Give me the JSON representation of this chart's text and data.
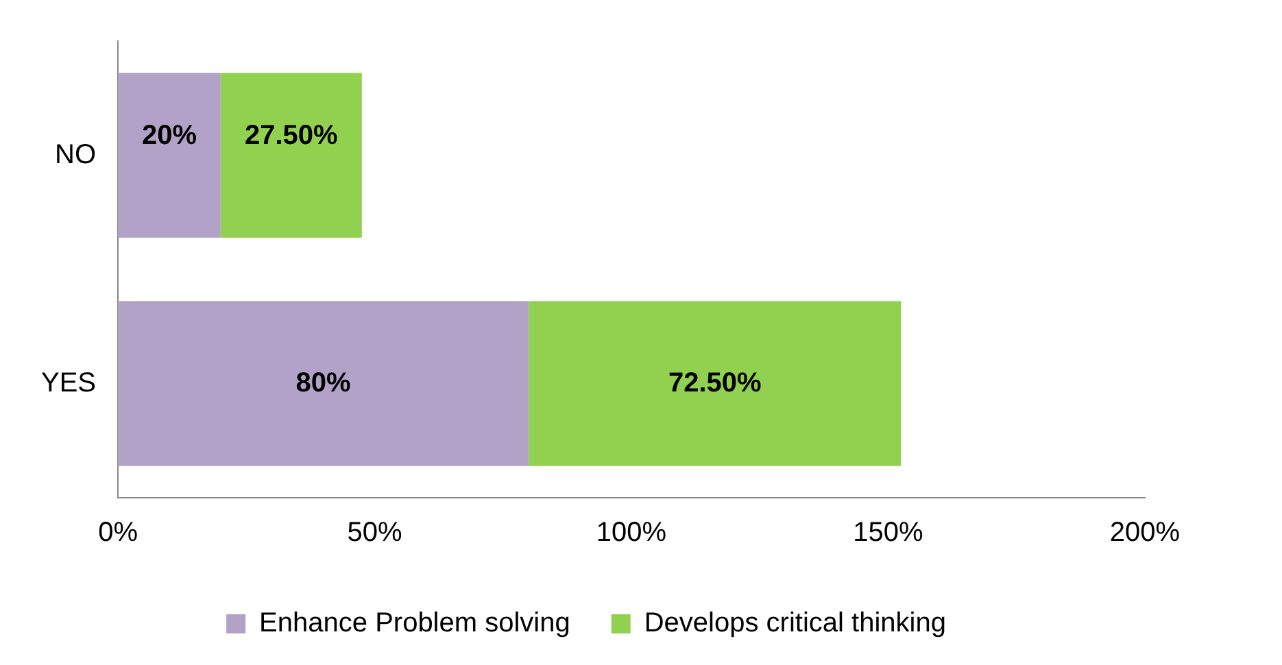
{
  "chart_data": {
    "type": "bar",
    "orientation": "horizontal",
    "stacked": true,
    "categories": [
      "NO",
      "YES"
    ],
    "series": [
      {
        "name": "Enhance Problem solving",
        "color": "#b3a2c7",
        "values": [
          20,
          80
        ],
        "value_labels": [
          "20%",
          "80%"
        ]
      },
      {
        "name": "Develops critical thinking",
        "color": "#92d050",
        "values": [
          27.5,
          72.5
        ],
        "value_labels": [
          "27.50%",
          "72.50%"
        ]
      }
    ],
    "xlim": [
      0,
      200
    ],
    "xticks": [
      {
        "value": 0,
        "label": "0%"
      },
      {
        "value": 50,
        "label": "50%"
      },
      {
        "value": 100,
        "label": "100%"
      },
      {
        "value": 150,
        "label": "150%"
      },
      {
        "value": 200,
        "label": "200%"
      }
    ],
    "grid": false,
    "legend": "bottom"
  }
}
